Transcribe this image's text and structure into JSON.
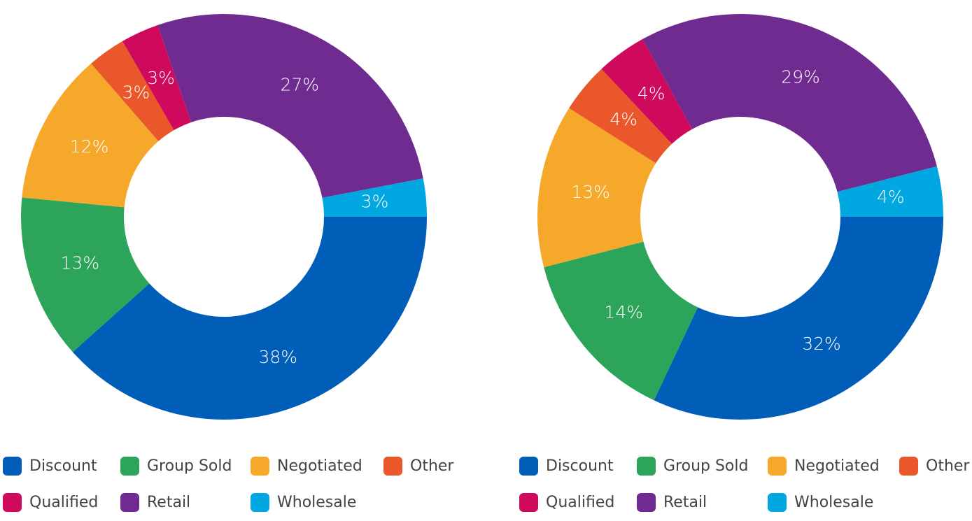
{
  "chart_data": [
    {
      "type": "pie",
      "categories": [
        "Discount",
        "Group Sold",
        "Negotiated",
        "Other",
        "Qualified",
        "Retail",
        "Wholesale"
      ],
      "values": [
        38,
        13,
        12,
        3,
        3,
        27,
        3
      ],
      "value_labels": [
        "38%",
        "13%",
        "12%",
        "3%",
        "3%",
        "27%",
        "3%"
      ],
      "colors": [
        "#005eb8",
        "#2ca55a",
        "#f5a82a",
        "#e9572a",
        "#cf0a5c",
        "#6f2b8f",
        "#00a7e0"
      ]
    },
    {
      "type": "pie",
      "categories": [
        "Discount",
        "Group Sold",
        "Negotiated",
        "Other",
        "Qualified",
        "Retail",
        "Wholesale"
      ],
      "values": [
        32,
        14,
        13,
        4,
        4,
        29,
        4
      ],
      "value_labels": [
        "32%",
        "14%",
        "13%",
        "4%",
        "4%",
        "29%",
        "4%"
      ],
      "colors": [
        "#005eb8",
        "#2ca55a",
        "#f5a82a",
        "#e9572a",
        "#cf0a5c",
        "#6f2b8f",
        "#00a7e0"
      ]
    }
  ]
}
